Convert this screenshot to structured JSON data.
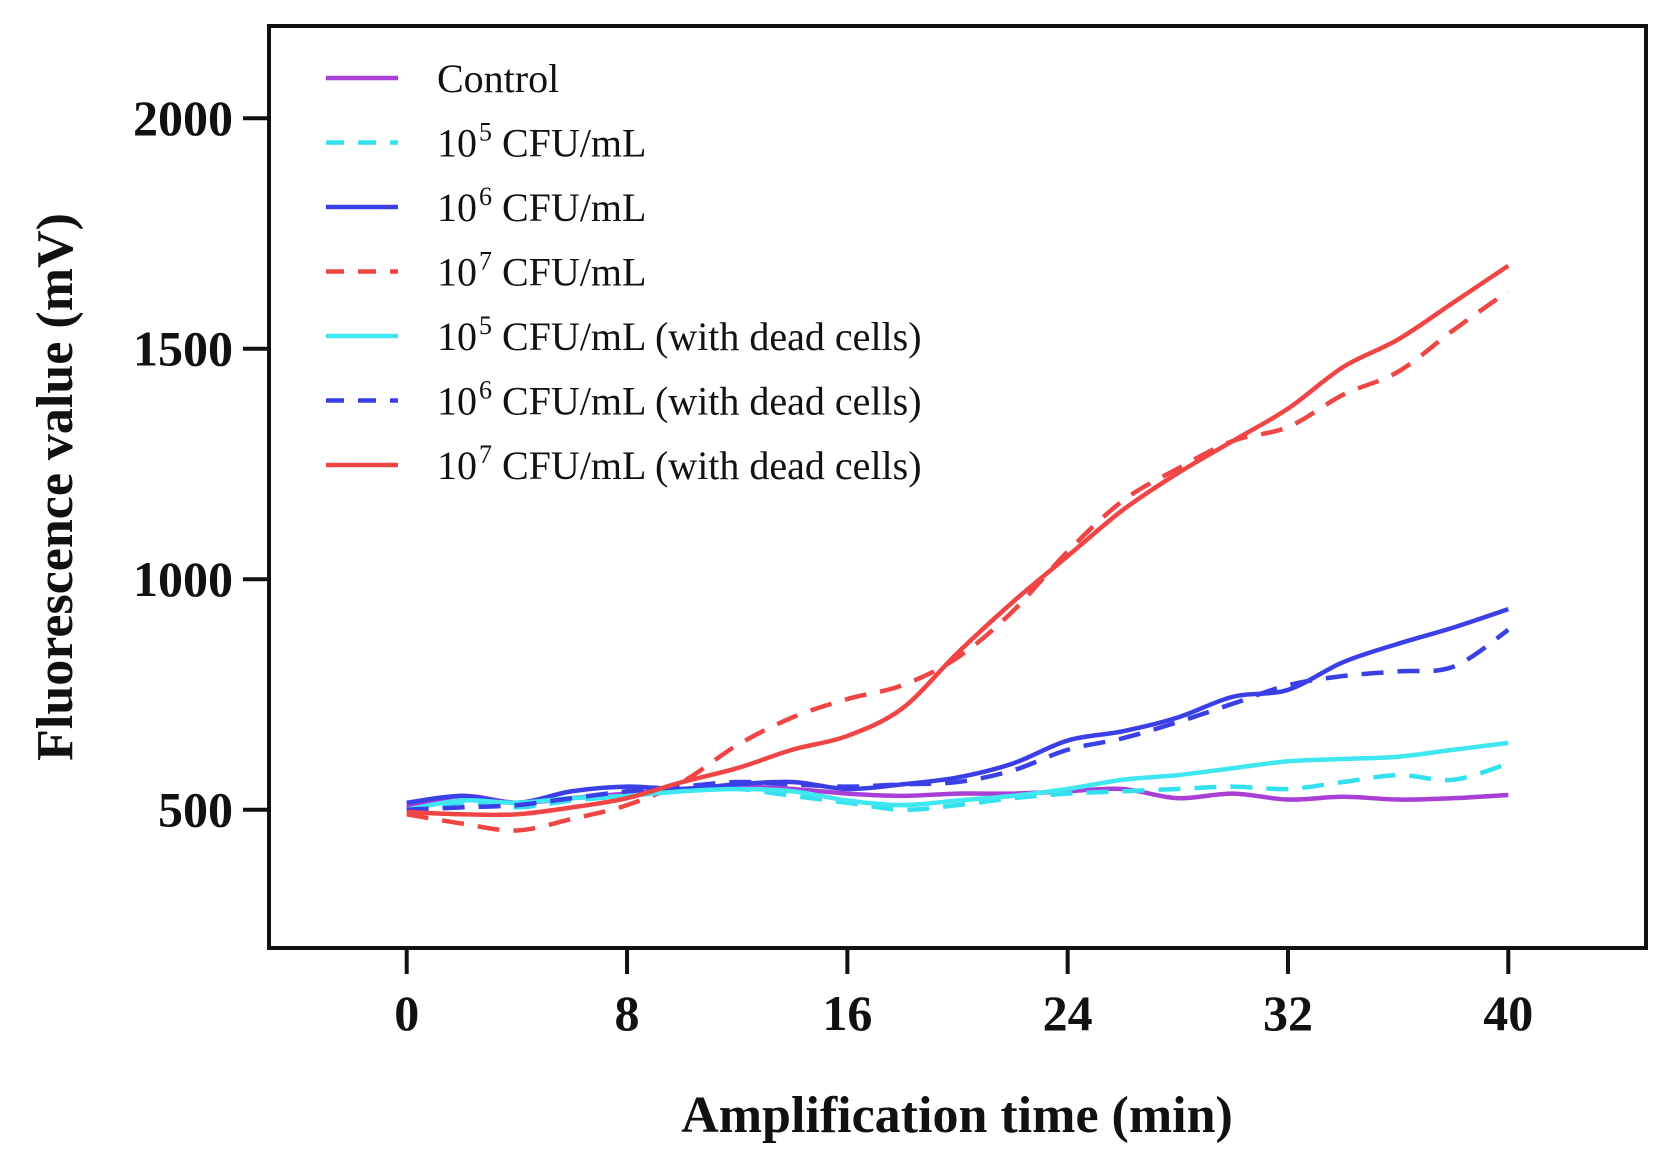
{
  "chart_data": {
    "type": "line",
    "title": "",
    "xlabel": "Amplification time (min)",
    "ylabel": "Fluorescence value (mV)",
    "xlim": [
      -5,
      45
    ],
    "ylim": [
      200,
      2200
    ],
    "xticks": [
      0,
      8,
      16,
      24,
      32,
      40
    ],
    "yticks": [
      500,
      1000,
      1500,
      2000
    ],
    "grid": false,
    "legend_position": "top-left",
    "x": [
      0,
      2,
      4,
      6,
      8,
      10,
      12,
      14,
      16,
      18,
      20,
      22,
      24,
      26,
      28,
      30,
      32,
      34,
      36,
      38,
      40
    ],
    "series": [
      {
        "name": "Control",
        "label_base": "Control",
        "label_sup": "",
        "label_rest": "",
        "color": "#a93fd6",
        "dash": "solid",
        "values": [
          505,
          530,
          515,
          525,
          535,
          545,
          550,
          545,
          535,
          530,
          535,
          535,
          540,
          545,
          525,
          535,
          522,
          528,
          522,
          525,
          532
        ]
      },
      {
        "name": "10^5 CFU/mL",
        "label_base": "10",
        "label_sup": "5",
        "label_rest": " CFU/mL",
        "color": "#33e0f0",
        "dash": "dashed",
        "values": [
          495,
          515,
          505,
          520,
          530,
          540,
          545,
          530,
          515,
          500,
          510,
          525,
          535,
          540,
          545,
          550,
          545,
          560,
          575,
          565,
          600
        ]
      },
      {
        "name": "10^6 CFU/mL",
        "label_base": "10",
        "label_sup": "6",
        "label_rest": " CFU/mL",
        "color": "#3b3fe6",
        "dash": "solid",
        "values": [
          515,
          530,
          515,
          540,
          550,
          545,
          555,
          560,
          545,
          555,
          570,
          600,
          650,
          670,
          700,
          745,
          760,
          820,
          860,
          895,
          935
        ]
      },
      {
        "name": "10^7 CFU/mL",
        "label_base": "10",
        "label_sup": "7",
        "label_rest": " CFU/mL",
        "color": "#f04545",
        "dash": "dashed",
        "values": [
          490,
          470,
          455,
          480,
          510,
          560,
          640,
          700,
          740,
          770,
          830,
          930,
          1060,
          1170,
          1240,
          1300,
          1330,
          1400,
          1450,
          1540,
          1625
        ]
      },
      {
        "name": "10^5 CFU/mL (with dead cells)",
        "label_base": "10",
        "label_sup": "5",
        "label_rest": " CFU/mL (with dead cells)",
        "color": "#3fe7f0",
        "dash": "solid",
        "values": [
          500,
          520,
          515,
          525,
          530,
          540,
          545,
          540,
          520,
          510,
          520,
          530,
          545,
          565,
          575,
          590,
          605,
          610,
          615,
          630,
          645
        ]
      },
      {
        "name": "10^6 CFU/mL (with dead cells)",
        "label_base": "10",
        "label_sup": "6",
        "label_rest": " CFU/mL (with dead cells)",
        "color": "#3b3fe6",
        "dash": "dashed",
        "values": [
          500,
          505,
          510,
          525,
          540,
          550,
          560,
          555,
          550,
          555,
          560,
          585,
          630,
          655,
          690,
          730,
          770,
          790,
          800,
          810,
          890
        ]
      },
      {
        "name": "10^7 CFU/mL (with dead cells)",
        "label_base": "10",
        "label_sup": "7",
        "label_rest": " CFU/mL (with dead cells)",
        "color": "#f04545",
        "dash": "solid",
        "values": [
          495,
          490,
          490,
          505,
          525,
          560,
          590,
          630,
          660,
          720,
          840,
          950,
          1050,
          1150,
          1230,
          1300,
          1370,
          1460,
          1520,
          1600,
          1680
        ]
      }
    ]
  }
}
